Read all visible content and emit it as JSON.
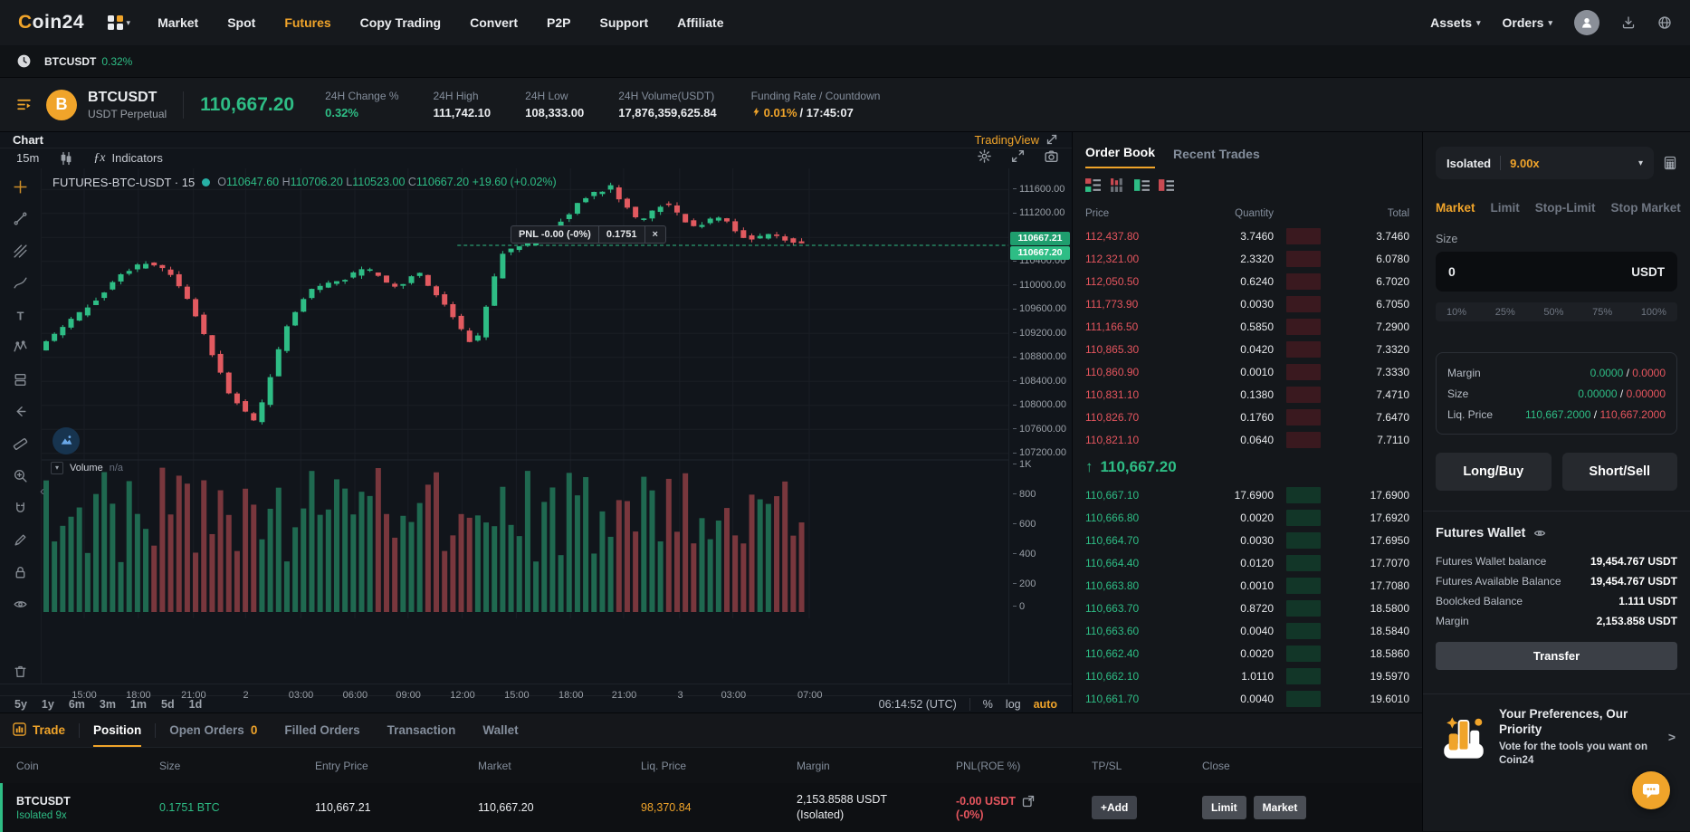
{
  "topnav": {
    "logo_c": "C",
    "logo_rest": "oin24",
    "items": [
      {
        "label": "Market",
        "active": false
      },
      {
        "label": "Spot",
        "active": false
      },
      {
        "label": "Futures",
        "active": true
      },
      {
        "label": "Copy Trading",
        "active": false
      },
      {
        "label": "Convert",
        "active": false
      },
      {
        "label": "P2P",
        "active": false
      },
      {
        "label": "Support",
        "active": false
      },
      {
        "label": "Affiliate",
        "active": false
      }
    ],
    "assets_label": "Assets",
    "orders_label": "Orders"
  },
  "announcement": {
    "symbol": "BTCUSDT",
    "change": "0.32%"
  },
  "ticker": {
    "symbol": "BTCUSDT",
    "contract_type": "USDT Perpetual",
    "last_price": "110,667.20",
    "stats": [
      {
        "label": "24H Change %",
        "value": "0.32%",
        "green": true
      },
      {
        "label": "24H High",
        "value": "111,742.10"
      },
      {
        "label": "24H Low",
        "value": "108,333.00"
      },
      {
        "label": "24H Volume(USDT)",
        "value": "17,876,359,625.84"
      }
    ],
    "funding": {
      "label": "Funding Rate  / Countdown",
      "rate": "0.01%",
      "countdown": "/ 17:45:07"
    }
  },
  "chart": {
    "panel_title": "Chart",
    "provider": "TradingView",
    "interval": "15m",
    "indicators_label": "Indicators",
    "fx": "ƒx",
    "symbol_line": "FUTURES-BTC-USDT · 15",
    "ohlc_text": "O110647.60  H110706.20  L110523.00  C110667.20  +19.60 (+0.02%)",
    "pnl_badge": {
      "text": "PNL -0.00 (-0%)",
      "qty": "0.1751",
      "close": "×"
    },
    "tool_icons": [
      "crosshair",
      "trend-line",
      "gann-fan",
      "brush",
      "text-tool",
      "xabcd-pattern",
      "long-position",
      "arrow-back",
      "ruler",
      "zoom-in",
      "magnet",
      "pencil",
      "lock",
      "eye",
      "trash"
    ],
    "header_icons": [
      "gear",
      "expand",
      "camera"
    ],
    "price_labels": [
      "111600.00",
      "111200.00",
      "110400.00",
      "110000.00",
      "109600.00",
      "109200.00",
      "108800.00",
      "108400.00",
      "108000.00",
      "107600.00",
      "107200.00"
    ],
    "price_badges": [
      "110667.21",
      "110667.20"
    ],
    "volume_label": "Volume",
    "volume_value": "n/a",
    "volume_scale": [
      "1K",
      "800",
      "600",
      "400",
      "200",
      "0"
    ],
    "time_labels": [
      "15:00",
      "18:00",
      "21:00",
      "2",
      "03:00",
      "06:00",
      "09:00",
      "12:00",
      "15:00",
      "18:00",
      "21:00",
      "3",
      "03:00",
      "07:00"
    ],
    "ranges": [
      "5y",
      "1y",
      "6m",
      "3m",
      "1m",
      "5d",
      "1d"
    ],
    "clock": "06:14:52 (UTC)",
    "percent_btn": "%",
    "log_btn": "log",
    "auto_btn": "auto",
    "collapse_arrow": "‹",
    "chart_data": {
      "type": "candlestick",
      "price_domain": [
        107150,
        111950
      ],
      "current_price": 110667.2,
      "waypoints": [
        108950,
        109350,
        109700,
        110150,
        110400,
        110150,
        109300,
        108200,
        107700,
        109200,
        109950,
        110050,
        110300,
        109950,
        110200,
        109600,
        108950,
        110550,
        110700,
        111000,
        111450,
        111650,
        111050,
        111400,
        110950,
        111150,
        110750,
        110850,
        110667
      ]
    }
  },
  "orderbook": {
    "tabs": [
      {
        "label": "Order Book",
        "active": true
      },
      {
        "label": "Recent Trades",
        "active": false
      }
    ],
    "view_icons": [
      "book-both",
      "book-depth",
      "book-bids",
      "book-asks"
    ],
    "columns": [
      "Price",
      "Quantity",
      "Total"
    ],
    "asks": [
      [
        "112,437.80",
        "3.7460",
        "3.7460"
      ],
      [
        "112,321.00",
        "2.3320",
        "6.0780"
      ],
      [
        "112,050.50",
        "0.6240",
        "6.7020"
      ],
      [
        "111,773.90",
        "0.0030",
        "6.7050"
      ],
      [
        "111,166.50",
        "0.5850",
        "7.2900"
      ],
      [
        "110,865.30",
        "0.0420",
        "7.3320"
      ],
      [
        "110,860.90",
        "0.0010",
        "7.3330"
      ],
      [
        "110,831.10",
        "0.1380",
        "7.4710"
      ],
      [
        "110,826.70",
        "0.1760",
        "7.6470"
      ],
      [
        "110,821.10",
        "0.0640",
        "7.7110"
      ]
    ],
    "mid_price": "110,667.20",
    "mid_arrow": "↑",
    "bids": [
      [
        "110,667.10",
        "17.6900",
        "17.6900"
      ],
      [
        "110,666.80",
        "0.0020",
        "17.6920"
      ],
      [
        "110,664.70",
        "0.0030",
        "17.6950"
      ],
      [
        "110,664.40",
        "0.0120",
        "17.7070"
      ],
      [
        "110,663.80",
        "0.0010",
        "17.7080"
      ],
      [
        "110,663.70",
        "0.8720",
        "18.5800"
      ],
      [
        "110,663.60",
        "0.0040",
        "18.5840"
      ],
      [
        "110,662.40",
        "0.0020",
        "18.5860"
      ],
      [
        "110,662.10",
        "1.0110",
        "19.5970"
      ],
      [
        "110,661.70",
        "0.0040",
        "19.6010"
      ]
    ]
  },
  "trade_panel": {
    "margin_mode": "Isolated",
    "leverage": "9.00x",
    "order_tabs": [
      {
        "label": "Market",
        "active": true
      },
      {
        "label": "Limit",
        "active": false
      },
      {
        "label": "Stop-Limit",
        "active": false
      },
      {
        "label": "Stop Market",
        "active": false
      }
    ],
    "size_label": "Size",
    "size_value": "0",
    "size_unit": "USDT",
    "percents": [
      "10%",
      "25%",
      "50%",
      "75%",
      "100%"
    ],
    "info_rows": [
      {
        "label": "Margin",
        "long": "0.0000",
        "short": "0.0000"
      },
      {
        "label": "Size",
        "long": "0.00000",
        "short": "0.00000"
      },
      {
        "label": "Liq. Price",
        "long": "110,667.2000",
        "short": "110,667.2000"
      }
    ],
    "buy_button": "Long/Buy",
    "sell_button": "Short/Sell",
    "wallet": {
      "title": "Futures Wallet",
      "rows": [
        {
          "label": "Futures Wallet balance",
          "value": "19,454.767 USDT"
        },
        {
          "label": "Futures Available Balance",
          "value": "19,454.767 USDT"
        },
        {
          "label": "Boolcked Balance",
          "value": "1.111 USDT"
        },
        {
          "label": "Margin",
          "value": "2,153.858 USDT"
        }
      ],
      "transfer_button": "Transfer"
    },
    "promo": {
      "title": "Your Preferences, Our Priority",
      "subtitle": "Vote for the tools you want on Coin24",
      "arrow": ">"
    }
  },
  "positions": {
    "tabs": [
      {
        "label": "Trade",
        "style": "trade"
      },
      {
        "label": "Position",
        "style": "active"
      },
      {
        "label": "Open Orders",
        "badge": "0"
      },
      {
        "label": "Filled Orders"
      },
      {
        "label": "Transaction"
      },
      {
        "label": "Wallet"
      }
    ],
    "columns": [
      "Coin",
      "Size",
      "Entry Price",
      "Market",
      "Liq. Price",
      "Margin",
      "PNL(ROE %)",
      "TP/SL",
      "Close"
    ],
    "row": {
      "coin": "BTCUSDT",
      "mode": "Isolated 9x",
      "size": "0.1751 BTC",
      "entry_price": "110,667.21",
      "market": "110,667.20",
      "liq_price": "98,370.84",
      "margin_line1": "2,153.8588 USDT",
      "margin_line2": "(Isolated)",
      "pnl_line1": "-0.00 USDT",
      "pnl_line2": "(-0%)",
      "tpsl_button": "+Add",
      "close_buttons": [
        "Limit",
        "Market"
      ]
    }
  }
}
